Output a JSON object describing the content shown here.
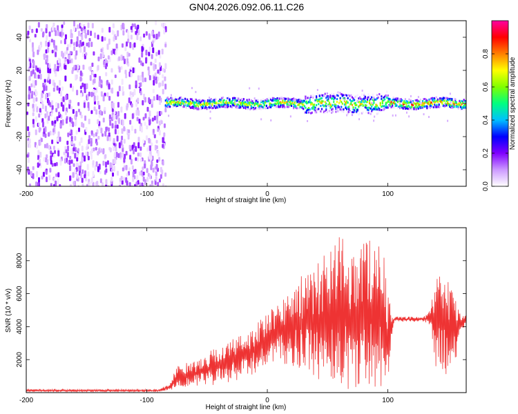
{
  "title": "GN04.2026.092.06.11.C26",
  "chart_data": [
    {
      "type": "heatmap",
      "title": "GN04.2026.092.06.11.C26",
      "xlabel": "Height of straight line (km)",
      "ylabel": "Frequency (Hz)",
      "xlim": [
        -200,
        165
      ],
      "ylim": [
        -50,
        50
      ],
      "xticks": [
        -200,
        -100,
        0,
        100
      ],
      "yticks": [
        -40,
        -20,
        0,
        20,
        40
      ],
      "colorbar": {
        "label": "Normalized spectral amplitude",
        "range": [
          0,
          1
        ],
        "ticks": [
          0.0,
          0.2,
          0.4,
          0.6,
          0.8
        ],
        "colors": [
          "#ffffff",
          "#cc99ff",
          "#8000ff",
          "#0000ff",
          "#00c0ff",
          "#00ff80",
          "#80ff00",
          "#ffff00",
          "#ff8000",
          "#ff0000",
          "#ff00a0"
        ]
      },
      "regions": [
        {
          "name": "broadband noise",
          "x_range": [
            -200,
            -85
          ],
          "freq_range": [
            -50,
            50
          ]
        },
        {
          "name": "narrowband signal",
          "x_range": [
            -85,
            165
          ],
          "center_freq": 0
        }
      ]
    },
    {
      "type": "line",
      "xlabel": "Height of straight line (km)",
      "ylabel": "SNR (10 * v/v)",
      "xlim": [
        -200,
        165
      ],
      "ylim": [
        0,
        10000
      ],
      "xticks": [
        -200,
        -100,
        0,
        100
      ],
      "yticks": [
        2000,
        4000,
        6000,
        8000
      ],
      "color": "#ee3333",
      "envelope": {
        "x": [
          -200,
          -90,
          -80,
          -75,
          -60,
          -40,
          -20,
          0,
          10,
          20,
          30,
          40,
          50,
          60,
          70,
          80,
          90,
          95,
          100,
          105,
          120,
          130,
          135,
          140,
          150,
          155,
          160,
          165
        ],
        "y_low": [
          50,
          50,
          150,
          300,
          400,
          400,
          800,
          1500,
          1800,
          1500,
          1200,
          800,
          400,
          200,
          150,
          200,
          300,
          300,
          800,
          4300,
          4300,
          4300,
          4000,
          1500,
          1000,
          1200,
          3800,
          3800
        ],
        "y_high": [
          200,
          200,
          600,
          1700,
          1900,
          2900,
          3600,
          4800,
          5500,
          6500,
          7200,
          7500,
          9200,
          9600,
          8800,
          9400,
          9700,
          9600,
          6000,
          4600,
          4600,
          4600,
          5000,
          7200,
          7300,
          6000,
          4800,
          4800
        ]
      }
    }
  ]
}
